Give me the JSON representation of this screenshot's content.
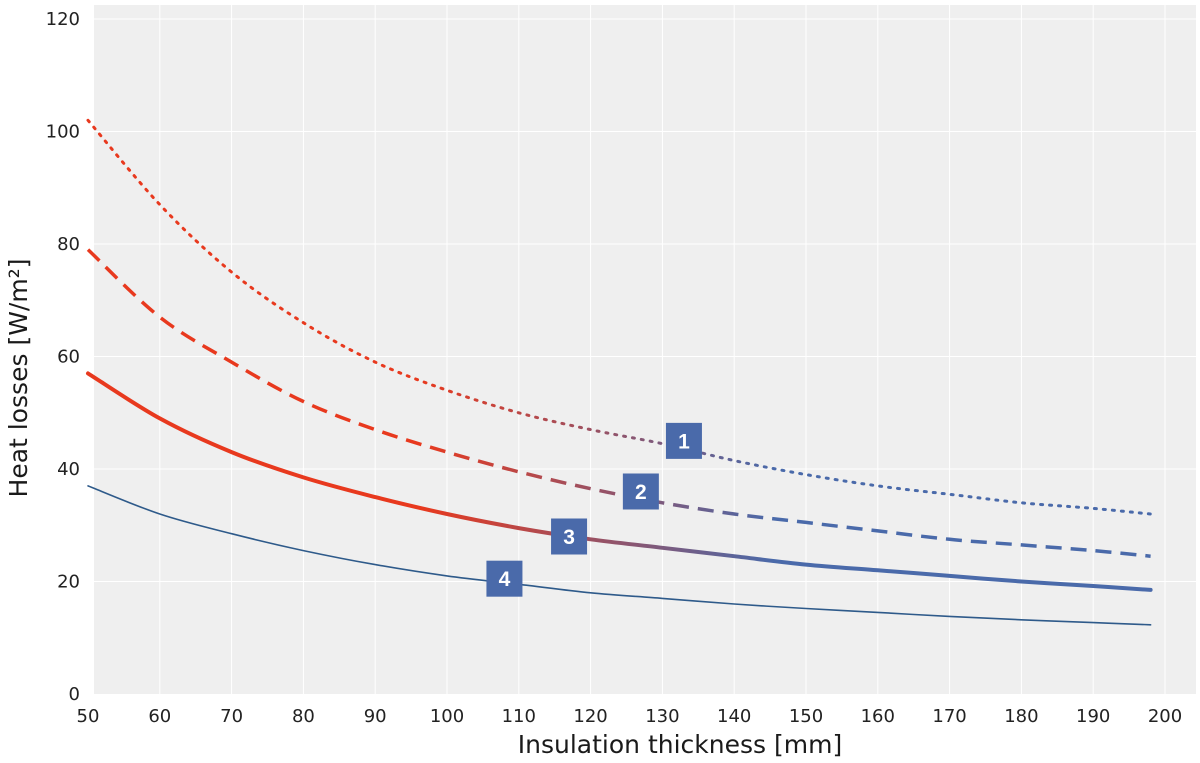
{
  "chart_data": {
    "type": "line",
    "xlabel": "Insulation thickness [mm]",
    "ylabel": "Heat losses [W/m²]",
    "xlim": [
      50,
      200
    ],
    "ylim": [
      0,
      120
    ],
    "xticks": [
      50,
      60,
      70,
      80,
      90,
      100,
      110,
      120,
      130,
      140,
      150,
      160,
      170,
      180,
      190,
      200
    ],
    "yticks": [
      0,
      20,
      40,
      60,
      80,
      100,
      120
    ],
    "grid": true,
    "legend": "numbered badges on curves",
    "color_gradient": [
      "#e8391e",
      "#4a6aaa"
    ],
    "x": [
      50,
      60,
      70,
      80,
      90,
      100,
      110,
      120,
      130,
      140,
      150,
      160,
      170,
      180,
      190,
      198
    ],
    "series": [
      {
        "label": "1",
        "style": "dotted",
        "values": [
          102,
          87,
          75,
          66,
          59,
          54,
          50,
          47,
          44.5,
          41.5,
          39,
          37,
          35.5,
          34,
          33,
          32
        ]
      },
      {
        "label": "2",
        "style": "dashed",
        "values": [
          79,
          67,
          59,
          52,
          47,
          43,
          39.5,
          36.5,
          34,
          32,
          30.5,
          29,
          27.5,
          26.5,
          25.5,
          24.5
        ]
      },
      {
        "label": "3",
        "style": "solid-thick",
        "values": [
          57,
          49,
          43,
          38.5,
          35,
          32,
          29.5,
          27.5,
          26,
          24.5,
          23,
          22,
          21,
          20,
          19.2,
          18.5
        ]
      },
      {
        "label": "4",
        "style": "solid-thin",
        "values": [
          37,
          32,
          28.5,
          25.5,
          23,
          21,
          19.5,
          18,
          17,
          16,
          15.2,
          14.5,
          13.8,
          13.2,
          12.7,
          12.3
        ]
      }
    ],
    "badges": [
      {
        "label": "1",
        "x": 133,
        "y": 45
      },
      {
        "label": "2",
        "x": 127,
        "y": 36
      },
      {
        "label": "3",
        "x": 117,
        "y": 28
      },
      {
        "label": "4",
        "x": 108,
        "y": 20.5
      }
    ]
  }
}
